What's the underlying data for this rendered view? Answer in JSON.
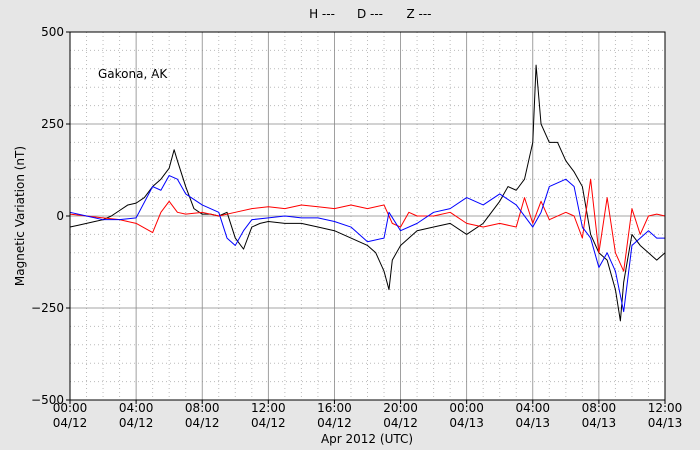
{
  "chart_data": {
    "type": "line",
    "annotation": "Gakona, AK",
    "x_label": "Apr 2012 (UTC)",
    "y_label": "Magnetic Variation (nT)",
    "xlim": [
      0,
      36
    ],
    "xticks": [
      {
        "value": 0,
        "label": [
          "00:00",
          "04/12"
        ]
      },
      {
        "value": 4,
        "label": [
          "04:00",
          "04/12"
        ]
      },
      {
        "value": 8,
        "label": [
          "08:00",
          "04/12"
        ]
      },
      {
        "value": 12,
        "label": [
          "12:00",
          "04/12"
        ]
      },
      {
        "value": 16,
        "label": [
          "16:00",
          "04/12"
        ]
      },
      {
        "value": 20,
        "label": [
          "20:00",
          "04/12"
        ]
      },
      {
        "value": 24,
        "label": [
          "00:00",
          "04/13"
        ]
      },
      {
        "value": 28,
        "label": [
          "04:00",
          "04/13"
        ]
      },
      {
        "value": 32,
        "label": [
          "08:00",
          "04/13"
        ]
      },
      {
        "value": 36,
        "label": [
          "12:00",
          "04/13"
        ]
      }
    ],
    "ylim": [
      -500,
      500
    ],
    "yticks": [
      {
        "value": -500,
        "label": "−500"
      },
      {
        "value": -250,
        "label": "−250"
      },
      0,
      250,
      500
    ],
    "grid": true,
    "minor_grid": true,
    "legend": "top",
    "series": [
      {
        "name": "H ---",
        "color": "#000000",
        "x": [
          0,
          0.5,
          1,
          1.5,
          2,
          2.5,
          3,
          3.5,
          4,
          4.5,
          5,
          5.5,
          6,
          6.3,
          6.5,
          7,
          7.5,
          8,
          8.5,
          9,
          9.5,
          10,
          10.5,
          11,
          11.5,
          12,
          13,
          14,
          15,
          16,
          17,
          18,
          18.5,
          19,
          19.3,
          19.5,
          20,
          20.5,
          21,
          22,
          23,
          24,
          25,
          26,
          26.5,
          27,
          27.5,
          28,
          28.2,
          28.5,
          29,
          29.5,
          30,
          30.5,
          31,
          31.5,
          32,
          32.5,
          33,
          33.3,
          33.5,
          34,
          34.5,
          35,
          35.5,
          36
        ],
        "values": [
          -30,
          -25,
          -20,
          -15,
          -10,
          0,
          15,
          30,
          35,
          50,
          80,
          100,
          130,
          180,
          150,
          80,
          20,
          5,
          5,
          0,
          10,
          -60,
          -90,
          -30,
          -20,
          -15,
          -20,
          -20,
          -30,
          -40,
          -60,
          -80,
          -100,
          -150,
          -200,
          -120,
          -80,
          -60,
          -40,
          -30,
          -20,
          -50,
          -20,
          40,
          80,
          70,
          100,
          200,
          410,
          250,
          200,
          200,
          150,
          120,
          80,
          -50,
          -100,
          -120,
          -200,
          -285,
          -180,
          -50,
          -80,
          -100,
          -120,
          -100
        ]
      },
      {
        "name": "D ---",
        "color": "#ff0000",
        "x": [
          0,
          1,
          2,
          3,
          4,
          5,
          5.5,
          6,
          6.5,
          7,
          8,
          9,
          10,
          11,
          12,
          13,
          14,
          15,
          16,
          17,
          18,
          19,
          19.5,
          20,
          20.5,
          21,
          22,
          23,
          24,
          25,
          26,
          27,
          27.5,
          28,
          28.5,
          29,
          30,
          30.5,
          31,
          31.5,
          32,
          32.5,
          33,
          33.5,
          34,
          34.5,
          35,
          35.5,
          36
        ],
        "values": [
          5,
          0,
          -5,
          -10,
          -20,
          -45,
          10,
          40,
          10,
          5,
          10,
          0,
          10,
          20,
          25,
          20,
          30,
          25,
          20,
          30,
          20,
          30,
          -20,
          -30,
          10,
          0,
          0,
          10,
          -20,
          -30,
          -20,
          -30,
          50,
          -20,
          40,
          -10,
          10,
          0,
          -60,
          100,
          -100,
          50,
          -100,
          -150,
          20,
          -50,
          0,
          5,
          0
        ]
      },
      {
        "name": "Z ---",
        "color": "#0000ff",
        "x": [
          0,
          1,
          2,
          3,
          4,
          5,
          5.5,
          6,
          6.5,
          7,
          8,
          9,
          9.5,
          10,
          10.5,
          11,
          12,
          13,
          14,
          15,
          16,
          17,
          18,
          19,
          19.3,
          20,
          21,
          22,
          23,
          24,
          25,
          26,
          27,
          28,
          28.5,
          29,
          30,
          30.5,
          31,
          31.5,
          32,
          32.5,
          33,
          33.5,
          34,
          34.5,
          35,
          35.5,
          36
        ],
        "values": [
          10,
          0,
          -10,
          -10,
          -5,
          80,
          70,
          110,
          100,
          60,
          30,
          10,
          -60,
          -80,
          -40,
          -10,
          -5,
          0,
          -5,
          -5,
          -15,
          -30,
          -70,
          -60,
          10,
          -40,
          -20,
          10,
          20,
          50,
          30,
          60,
          30,
          -30,
          10,
          80,
          100,
          80,
          -30,
          -60,
          -140,
          -100,
          -150,
          -260,
          -80,
          -60,
          -40,
          -60,
          -60
        ]
      }
    ]
  }
}
